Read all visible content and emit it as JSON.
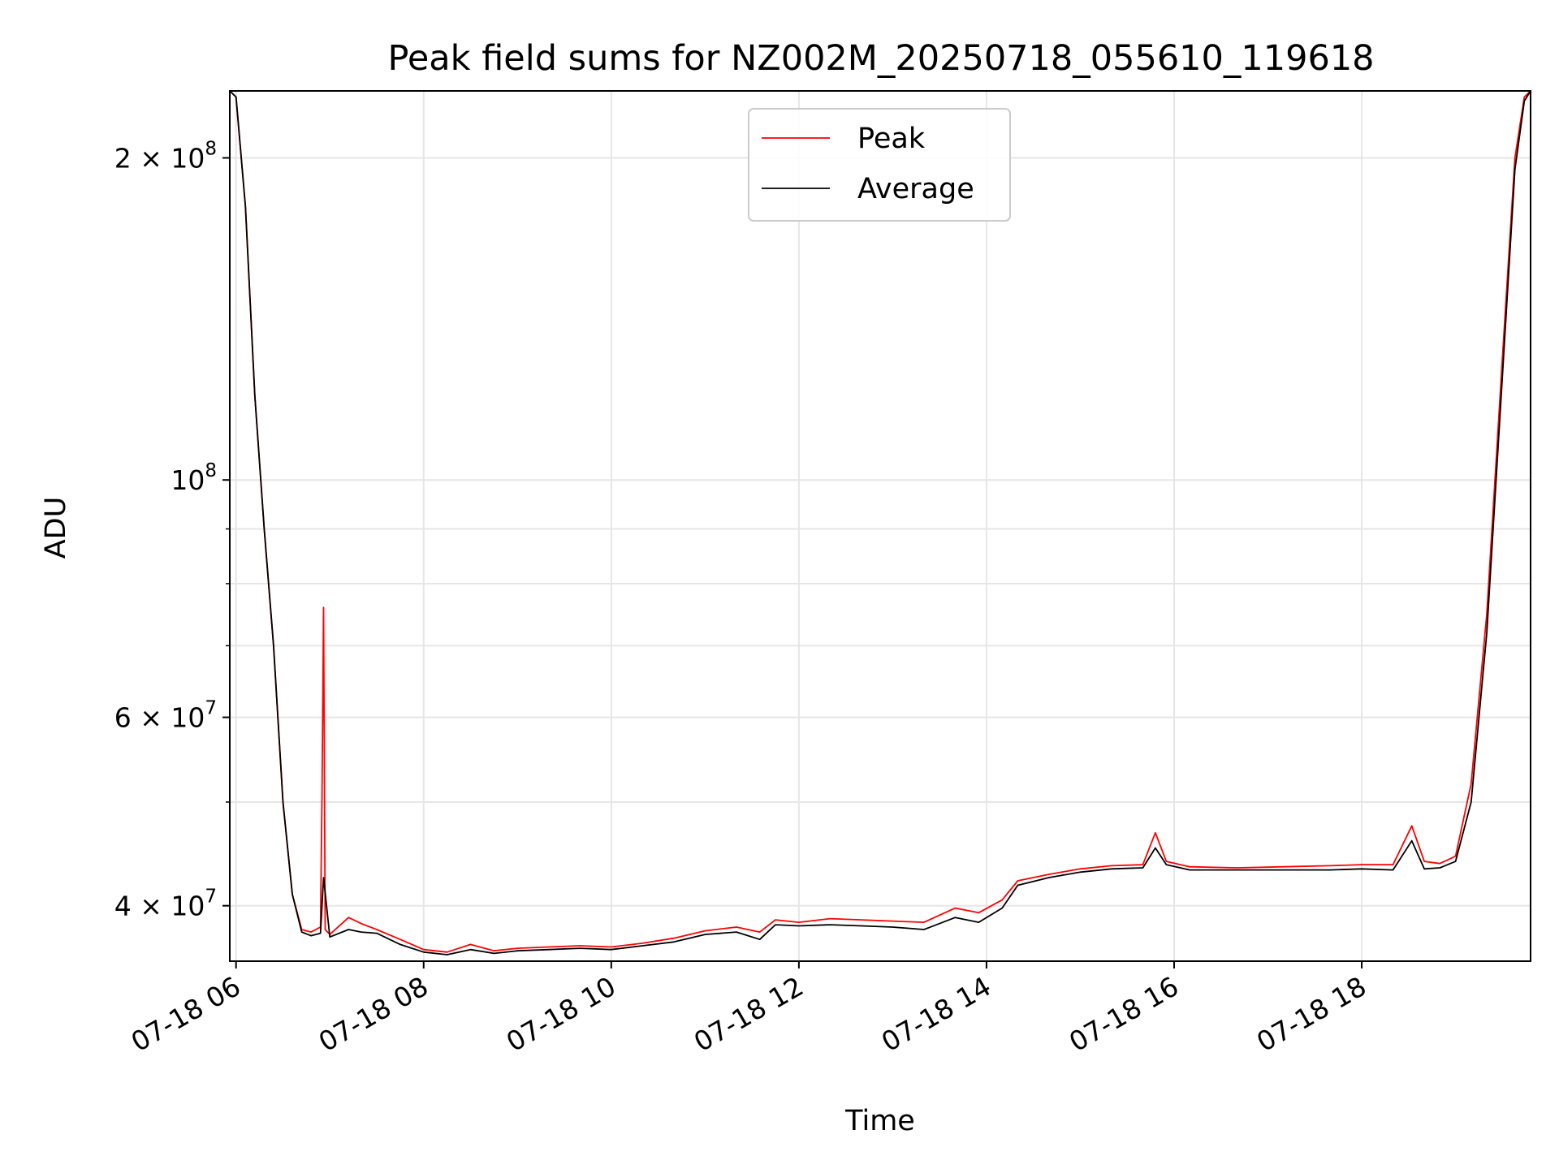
{
  "chart_data": {
    "type": "line",
    "title": "Peak field sums for NZ002M_20250718_055610_119618",
    "xlabel": "Time",
    "ylabel": "ADU",
    "yscale": "log",
    "grid": true,
    "legend_position": "upper center",
    "xlim": [
      "2025-07-18 05:56",
      "2025-07-18 19:48"
    ],
    "ylim": [
      35500000,
      231000000
    ],
    "x_ticks": [
      {
        "value": "2025-07-18 06:00",
        "label": "07-18 06"
      },
      {
        "value": "2025-07-18 08:00",
        "label": "07-18 08"
      },
      {
        "value": "2025-07-18 10:00",
        "label": "07-18 10"
      },
      {
        "value": "2025-07-18 12:00",
        "label": "07-18 12"
      },
      {
        "value": "2025-07-18 14:00",
        "label": "07-18 14"
      },
      {
        "value": "2025-07-18 16:00",
        "label": "07-18 16"
      },
      {
        "value": "2025-07-18 18:00",
        "label": "07-18 18"
      }
    ],
    "y_major_ticks": [
      {
        "value": 40000000,
        "mantissa": "4",
        "times": "×",
        "base": "10",
        "exp": "7"
      },
      {
        "value": 60000000,
        "mantissa": "6",
        "times": "×",
        "base": "10",
        "exp": "7"
      },
      {
        "value": 100000000,
        "mantissa": "",
        "times": "",
        "base": "10",
        "exp": "8"
      },
      {
        "value": 200000000,
        "mantissa": "2",
        "times": "×",
        "base": "10",
        "exp": "8"
      }
    ],
    "y_minor_ticks": [
      50000000,
      70000000,
      80000000,
      90000000
    ],
    "series": [
      {
        "name": "Peak",
        "color": "#ff0000",
        "x": [
          "2025-07-18 05:56",
          "2025-07-18 06:00",
          "2025-07-18 06:06",
          "2025-07-18 06:12",
          "2025-07-18 06:18",
          "2025-07-18 06:24",
          "2025-07-18 06:30",
          "2025-07-18 06:36",
          "2025-07-18 06:42",
          "2025-07-18 06:48",
          "2025-07-18 06:54",
          "2025-07-18 06:55",
          "2025-07-18 06:56",
          "2025-07-18 06:57",
          "2025-07-18 07:00",
          "2025-07-18 07:12",
          "2025-07-18 07:20",
          "2025-07-18 07:30",
          "2025-07-18 07:45",
          "2025-07-18 08:00",
          "2025-07-18 08:15",
          "2025-07-18 08:30",
          "2025-07-18 08:45",
          "2025-07-18 09:00",
          "2025-07-18 09:20",
          "2025-07-18 09:40",
          "2025-07-18 10:00",
          "2025-07-18 10:20",
          "2025-07-18 10:40",
          "2025-07-18 11:00",
          "2025-07-18 11:20",
          "2025-07-18 11:35",
          "2025-07-18 11:45",
          "2025-07-18 12:00",
          "2025-07-18 12:20",
          "2025-07-18 12:40",
          "2025-07-18 13:00",
          "2025-07-18 13:20",
          "2025-07-18 13:40",
          "2025-07-18 13:55",
          "2025-07-18 14:10",
          "2025-07-18 14:20",
          "2025-07-18 14:40",
          "2025-07-18 15:00",
          "2025-07-18 15:20",
          "2025-07-18 15:40",
          "2025-07-18 15:48",
          "2025-07-18 15:55",
          "2025-07-18 16:10",
          "2025-07-18 16:40",
          "2025-07-18 17:10",
          "2025-07-18 17:40",
          "2025-07-18 18:00",
          "2025-07-18 18:20",
          "2025-07-18 18:32",
          "2025-07-18 18:40",
          "2025-07-18 18:50",
          "2025-07-18 19:00",
          "2025-07-18 19:10",
          "2025-07-18 19:20",
          "2025-07-18 19:30",
          "2025-07-18 19:38",
          "2025-07-18 19:44",
          "2025-07-18 19:48"
        ],
        "values": [
          231000000,
          228000000,
          180000000,
          120000000,
          90000000,
          70000000,
          50000000,
          41000000,
          38000000,
          37800000,
          38200000,
          51000000,
          76000000,
          38000000,
          37600000,
          39000000,
          38500000,
          38000000,
          37200000,
          36400000,
          36200000,
          36800000,
          36300000,
          36500000,
          36600000,
          36700000,
          36600000,
          36900000,
          37300000,
          37900000,
          38200000,
          37800000,
          38800000,
          38600000,
          38900000,
          38800000,
          38700000,
          38600000,
          39800000,
          39400000,
          40500000,
          42200000,
          42800000,
          43300000,
          43600000,
          43700000,
          46800000,
          44000000,
          43500000,
          43400000,
          43500000,
          43600000,
          43700000,
          43700000,
          47500000,
          44000000,
          43800000,
          44500000,
          52000000,
          75000000,
          130000000,
          200000000,
          228000000,
          231000000
        ]
      },
      {
        "name": "Average",
        "color": "#000000",
        "x": [
          "2025-07-18 05:56",
          "2025-07-18 06:00",
          "2025-07-18 06:06",
          "2025-07-18 06:12",
          "2025-07-18 06:18",
          "2025-07-18 06:24",
          "2025-07-18 06:30",
          "2025-07-18 06:36",
          "2025-07-18 06:42",
          "2025-07-18 06:48",
          "2025-07-18 06:54",
          "2025-07-18 06:56",
          "2025-07-18 07:00",
          "2025-07-18 07:12",
          "2025-07-18 07:20",
          "2025-07-18 07:30",
          "2025-07-18 07:45",
          "2025-07-18 08:00",
          "2025-07-18 08:15",
          "2025-07-18 08:30",
          "2025-07-18 08:45",
          "2025-07-18 09:00",
          "2025-07-18 09:20",
          "2025-07-18 09:40",
          "2025-07-18 10:00",
          "2025-07-18 10:20",
          "2025-07-18 10:40",
          "2025-07-18 11:00",
          "2025-07-18 11:20",
          "2025-07-18 11:35",
          "2025-07-18 11:45",
          "2025-07-18 12:00",
          "2025-07-18 12:20",
          "2025-07-18 12:40",
          "2025-07-18 13:00",
          "2025-07-18 13:20",
          "2025-07-18 13:40",
          "2025-07-18 13:55",
          "2025-07-18 14:10",
          "2025-07-18 14:20",
          "2025-07-18 14:40",
          "2025-07-18 15:00",
          "2025-07-18 15:20",
          "2025-07-18 15:40",
          "2025-07-18 15:48",
          "2025-07-18 15:55",
          "2025-07-18 16:10",
          "2025-07-18 16:40",
          "2025-07-18 17:10",
          "2025-07-18 17:40",
          "2025-07-18 18:00",
          "2025-07-18 18:20",
          "2025-07-18 18:32",
          "2025-07-18 18:40",
          "2025-07-18 18:50",
          "2025-07-18 19:00",
          "2025-07-18 19:10",
          "2025-07-18 19:20",
          "2025-07-18 19:30",
          "2025-07-18 19:38",
          "2025-07-18 19:44",
          "2025-07-18 19:48"
        ],
        "values": [
          231000000,
          228000000,
          180000000,
          120000000,
          90000000,
          70000000,
          50000000,
          41000000,
          37800000,
          37500000,
          37700000,
          42500000,
          37400000,
          38000000,
          37800000,
          37700000,
          36800000,
          36200000,
          36000000,
          36400000,
          36100000,
          36300000,
          36400000,
          36500000,
          36400000,
          36700000,
          37000000,
          37600000,
          37800000,
          37200000,
          38400000,
          38300000,
          38400000,
          38300000,
          38200000,
          38000000,
          39000000,
          38600000,
          39800000,
          41800000,
          42500000,
          43000000,
          43300000,
          43400000,
          45300000,
          43700000,
          43200000,
          43200000,
          43200000,
          43200000,
          43300000,
          43200000,
          46000000,
          43300000,
          43400000,
          44000000,
          50000000,
          72000000,
          125000000,
          195000000,
          226000000,
          231000000
        ]
      }
    ]
  }
}
